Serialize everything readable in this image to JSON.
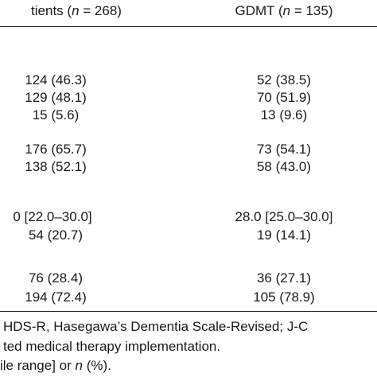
{
  "table": {
    "header": [
      {
        "parts": [
          "tients (",
          "n",
          " = 268)"
        ]
      },
      {
        "parts": [
          "GDMT (",
          "n",
          " = 135)"
        ]
      }
    ],
    "rows": [
      [
        "124 (46.3)",
        "52 (38.5)"
      ],
      [
        "129 (48.1)",
        "70 (51.9)"
      ],
      [
        "15 (5.6)",
        "13 (9.6)"
      ],
      [
        "176 (65.7)",
        "73 (54.1)"
      ],
      [
        "138 (52.1)",
        "58 (43.0)"
      ],
      [
        "0 [22.0–30.0]",
        "28.0 [25.0–30.0]"
      ],
      [
        "54 (20.7)",
        "19 (14.1)"
      ],
      [
        "76 (28.4)",
        "36 (27.1)"
      ],
      [
        "194 (72.4)",
        "105 (78.9)"
      ]
    ]
  },
  "footnotes": [
    {
      "parts": [
        "HDS-R, Hasegawa’s Dementia Scale-Revised; J-C"
      ]
    },
    {
      "parts": [
        "ted medical therapy implementation."
      ]
    },
    {
      "parts": [
        "ile range] or ",
        "n",
        " (%)."
      ]
    }
  ]
}
